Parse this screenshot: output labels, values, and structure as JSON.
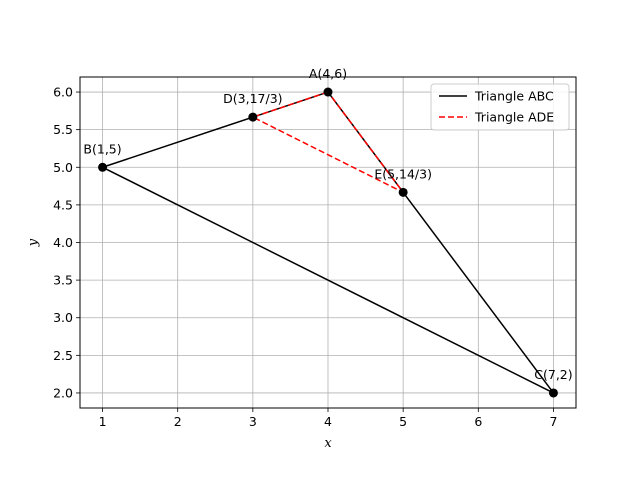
{
  "chart_data": {
    "type": "line",
    "xlabel": "x",
    "ylabel": "y",
    "xlim": [
      0.7,
      7.3
    ],
    "ylim": [
      1.8,
      6.2
    ],
    "xticks": [
      1,
      2,
      3,
      4,
      5,
      6,
      7
    ],
    "yticks": [
      2.0,
      2.5,
      3.0,
      3.5,
      4.0,
      4.5,
      5.0,
      5.5,
      6.0
    ],
    "xtick_labels": [
      "1",
      "2",
      "3",
      "4",
      "5",
      "6",
      "7"
    ],
    "ytick_labels": [
      "2.0",
      "2.5",
      "3.0",
      "3.5",
      "4.0",
      "4.5",
      "5.0",
      "5.5",
      "6.0"
    ],
    "grid": true,
    "legend_position": "top-right",
    "series": [
      {
        "name": "Triangle ABC",
        "color": "#000000",
        "style": "solid",
        "points": [
          [
            4,
            6
          ],
          [
            1,
            5
          ],
          [
            7,
            2
          ],
          [
            4,
            6
          ]
        ]
      },
      {
        "name": "Triangle ADE",
        "color": "#ff0000",
        "style": "dashed",
        "points": [
          [
            4,
            6
          ],
          [
            3,
            5.6667
          ],
          [
            5,
            4.6667
          ],
          [
            4,
            6
          ]
        ]
      }
    ],
    "labeled_points": [
      {
        "label": "A(4,6)",
        "x": 4,
        "y": 6
      },
      {
        "label": "B(1,5)",
        "x": 1,
        "y": 5
      },
      {
        "label": "C(7,2)",
        "x": 7,
        "y": 2
      },
      {
        "label": "D(3,17/3)",
        "x": 3,
        "y": 5.6667
      },
      {
        "label": "E(5,14/3)",
        "x": 5,
        "y": 4.6667
      }
    ]
  }
}
